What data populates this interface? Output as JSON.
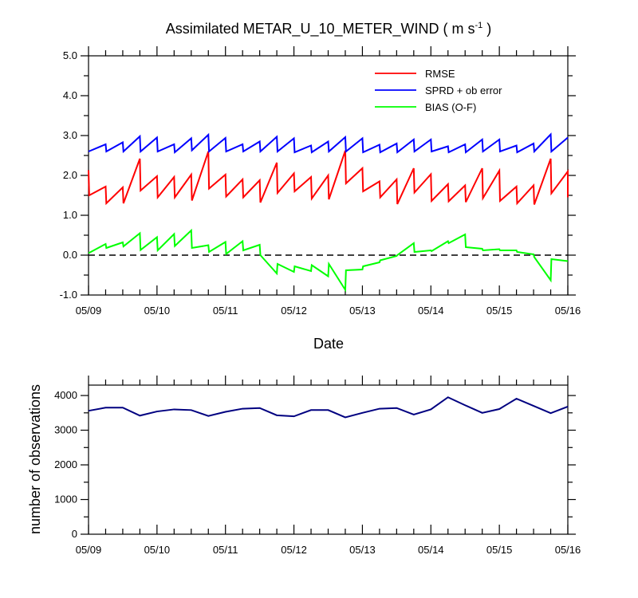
{
  "chart_data": [
    {
      "type": "line",
      "title": "Assimilated METAR_U_10_METER_WIND ( m s",
      "title_superscript": "-1",
      "title_suffix": " )",
      "xlabel": "Date",
      "ylabel": "",
      "x_tick_labels": [
        "05/09",
        "05/10",
        "05/11",
        "05/12",
        "05/13",
        "05/14",
        "05/15",
        "05/16"
      ],
      "xlim": [
        0,
        7
      ],
      "ylim": [
        -1.0,
        5.0
      ],
      "y_ticks": [
        -1.0,
        0.0,
        1.0,
        2.0,
        3.0,
        4.0,
        5.0
      ],
      "y_tick_labels": [
        "-1.0",
        "0.0",
        "1.0",
        "2.0",
        "3.0",
        "4.0",
        "5.0"
      ],
      "reference_line": 0.0,
      "legend_position": "top-right",
      "series": [
        {
          "name": "RMSE",
          "color": "#ff0000",
          "points": [
            [
              0,
              2.13
            ],
            [
              0.01,
              1.5
            ],
            [
              0.25,
              1.72
            ],
            [
              0.26,
              1.3
            ],
            [
              0.5,
              1.7
            ],
            [
              0.51,
              1.3
            ],
            [
              0.75,
              2.42
            ],
            [
              0.76,
              1.62
            ],
            [
              1.0,
              1.98
            ],
            [
              1.01,
              1.45
            ],
            [
              1.25,
              1.96
            ],
            [
              1.26,
              1.45
            ],
            [
              1.5,
              2.02
            ],
            [
              1.51,
              1.37
            ],
            [
              1.75,
              2.6
            ],
            [
              1.76,
              1.67
            ],
            [
              2.0,
              2.02
            ],
            [
              2.01,
              1.47
            ],
            [
              2.25,
              1.9
            ],
            [
              2.26,
              1.45
            ],
            [
              2.5,
              1.88
            ],
            [
              2.51,
              1.32
            ],
            [
              2.75,
              2.32
            ],
            [
              2.76,
              1.56
            ],
            [
              3.0,
              2.05
            ],
            [
              3.01,
              1.6
            ],
            [
              3.25,
              1.96
            ],
            [
              3.26,
              1.42
            ],
            [
              3.5,
              2.0
            ],
            [
              3.51,
              1.4
            ],
            [
              3.75,
              2.62
            ],
            [
              3.76,
              1.8
            ],
            [
              4.0,
              2.18
            ],
            [
              4.01,
              1.6
            ],
            [
              4.25,
              1.85
            ],
            [
              4.26,
              1.45
            ],
            [
              4.5,
              1.9
            ],
            [
              4.51,
              1.28
            ],
            [
              4.75,
              2.18
            ],
            [
              4.76,
              1.57
            ],
            [
              5.0,
              2.03
            ],
            [
              5.01,
              1.36
            ],
            [
              5.25,
              1.78
            ],
            [
              5.26,
              1.35
            ],
            [
              5.5,
              1.75
            ],
            [
              5.51,
              1.33
            ],
            [
              5.75,
              2.18
            ],
            [
              5.76,
              1.43
            ],
            [
              6.0,
              2.12
            ],
            [
              6.01,
              1.36
            ],
            [
              6.25,
              1.72
            ],
            [
              6.26,
              1.3
            ],
            [
              6.5,
              1.75
            ],
            [
              6.51,
              1.27
            ],
            [
              6.75,
              2.42
            ],
            [
              6.76,
              1.55
            ],
            [
              7.0,
              2.1
            ],
            [
              7.01,
              1.45
            ]
          ]
        },
        {
          "name": "SPRD + ob error",
          "color": "#0000ff",
          "points": [
            [
              0,
              2.6
            ],
            [
              0.25,
              2.78
            ],
            [
              0.26,
              2.6
            ],
            [
              0.5,
              2.83
            ],
            [
              0.51,
              2.6
            ],
            [
              0.75,
              2.98
            ],
            [
              0.76,
              2.6
            ],
            [
              1.0,
              2.95
            ],
            [
              1.01,
              2.6
            ],
            [
              1.25,
              2.78
            ],
            [
              1.26,
              2.58
            ],
            [
              1.5,
              2.93
            ],
            [
              1.51,
              2.63
            ],
            [
              1.75,
              3.02
            ],
            [
              1.76,
              2.6
            ],
            [
              2.0,
              2.94
            ],
            [
              2.01,
              2.6
            ],
            [
              2.25,
              2.78
            ],
            [
              2.26,
              2.6
            ],
            [
              2.5,
              2.85
            ],
            [
              2.51,
              2.6
            ],
            [
              2.75,
              2.97
            ],
            [
              2.76,
              2.6
            ],
            [
              3.0,
              2.93
            ],
            [
              3.01,
              2.58
            ],
            [
              3.25,
              2.75
            ],
            [
              3.26,
              2.58
            ],
            [
              3.5,
              2.85
            ],
            [
              3.51,
              2.6
            ],
            [
              3.75,
              2.96
            ],
            [
              3.76,
              2.6
            ],
            [
              4.0,
              2.93
            ],
            [
              4.01,
              2.58
            ],
            [
              4.25,
              2.77
            ],
            [
              4.26,
              2.58
            ],
            [
              4.5,
              2.8
            ],
            [
              4.51,
              2.58
            ],
            [
              4.75,
              2.9
            ],
            [
              4.76,
              2.6
            ],
            [
              5.0,
              2.9
            ],
            [
              5.01,
              2.6
            ],
            [
              5.25,
              2.73
            ],
            [
              5.26,
              2.58
            ],
            [
              5.5,
              2.78
            ],
            [
              5.51,
              2.58
            ],
            [
              5.75,
              2.9
            ],
            [
              5.76,
              2.6
            ],
            [
              6.0,
              2.9
            ],
            [
              6.01,
              2.6
            ],
            [
              6.25,
              2.75
            ],
            [
              6.26,
              2.58
            ],
            [
              6.5,
              2.8
            ],
            [
              6.51,
              2.6
            ],
            [
              6.75,
              3.03
            ],
            [
              6.76,
              2.6
            ],
            [
              7.0,
              2.95
            ]
          ]
        },
        {
          "name": "BIAS (O-F)",
          "color": "#00ff00",
          "points": [
            [
              0,
              0.05
            ],
            [
              0.25,
              0.28
            ],
            [
              0.26,
              0.18
            ],
            [
              0.5,
              0.32
            ],
            [
              0.51,
              0.22
            ],
            [
              0.75,
              0.55
            ],
            [
              0.76,
              0.13
            ],
            [
              1.0,
              0.45
            ],
            [
              1.01,
              0.12
            ],
            [
              1.25,
              0.53
            ],
            [
              1.26,
              0.23
            ],
            [
              1.5,
              0.62
            ],
            [
              1.51,
              0.18
            ],
            [
              1.75,
              0.25
            ],
            [
              1.76,
              0.08
            ],
            [
              2.0,
              0.33
            ],
            [
              2.01,
              0.03
            ],
            [
              2.25,
              0.35
            ],
            [
              2.26,
              0.12
            ],
            [
              2.5,
              0.26
            ],
            [
              2.51,
              0.0
            ],
            [
              2.75,
              -0.46
            ],
            [
              2.76,
              -0.22
            ],
            [
              3.0,
              -0.42
            ],
            [
              3.01,
              -0.28
            ],
            [
              3.25,
              -0.4
            ],
            [
              3.26,
              -0.25
            ],
            [
              3.5,
              -0.53
            ],
            [
              3.51,
              -0.22
            ],
            [
              3.75,
              -0.87
            ],
            [
              3.76,
              -0.38
            ],
            [
              4.0,
              -0.36
            ],
            [
              4.01,
              -0.28
            ],
            [
              4.25,
              -0.18
            ],
            [
              4.26,
              -0.13
            ],
            [
              4.5,
              -0.02
            ],
            [
              4.51,
              0.0
            ],
            [
              4.75,
              0.3
            ],
            [
              4.76,
              0.08
            ],
            [
              5.0,
              0.12
            ],
            [
              5.01,
              0.1
            ],
            [
              5.25,
              0.35
            ],
            [
              5.26,
              0.3
            ],
            [
              5.5,
              0.52
            ],
            [
              5.51,
              0.2
            ],
            [
              5.75,
              0.16
            ],
            [
              5.76,
              0.12
            ],
            [
              6.0,
              0.15
            ],
            [
              6.01,
              0.12
            ],
            [
              6.25,
              0.12
            ],
            [
              6.26,
              0.08
            ],
            [
              6.5,
              0.02
            ],
            [
              6.51,
              -0.05
            ],
            [
              6.75,
              -0.63
            ],
            [
              6.76,
              -0.1
            ],
            [
              7.0,
              -0.15
            ]
          ]
        }
      ]
    },
    {
      "type": "line",
      "title": "",
      "xlabel": "",
      "ylabel": "number of observations",
      "x_tick_labels": [
        "05/09",
        "05/10",
        "05/11",
        "05/12",
        "05/13",
        "05/14",
        "05/15",
        "05/16"
      ],
      "xlim": [
        0,
        7
      ],
      "ylim": [
        0,
        4300
      ],
      "y_ticks": [
        0,
        1000,
        2000,
        3000,
        4000
      ],
      "y_tick_labels": [
        "0",
        "1000",
        "2000",
        "3000",
        "4000"
      ],
      "series": [
        {
          "name": "number of observations",
          "color": "#000080",
          "points": [
            [
              0,
              3560
            ],
            [
              0.25,
              3650
            ],
            [
              0.5,
              3650
            ],
            [
              0.75,
              3420
            ],
            [
              1.0,
              3540
            ],
            [
              1.25,
              3600
            ],
            [
              1.5,
              3580
            ],
            [
              1.75,
              3410
            ],
            [
              2.0,
              3530
            ],
            [
              2.25,
              3620
            ],
            [
              2.5,
              3640
            ],
            [
              2.75,
              3430
            ],
            [
              3.0,
              3400
            ],
            [
              3.25,
              3580
            ],
            [
              3.5,
              3580
            ],
            [
              3.75,
              3370
            ],
            [
              4.0,
              3500
            ],
            [
              4.25,
              3620
            ],
            [
              4.5,
              3640
            ],
            [
              4.75,
              3450
            ],
            [
              5.0,
              3600
            ],
            [
              5.25,
              3950
            ],
            [
              5.5,
              3720
            ],
            [
              5.75,
              3500
            ],
            [
              6.0,
              3610
            ],
            [
              6.25,
              3910
            ],
            [
              6.5,
              3700
            ],
            [
              6.75,
              3490
            ],
            [
              7.0,
              3680
            ]
          ]
        }
      ]
    }
  ]
}
